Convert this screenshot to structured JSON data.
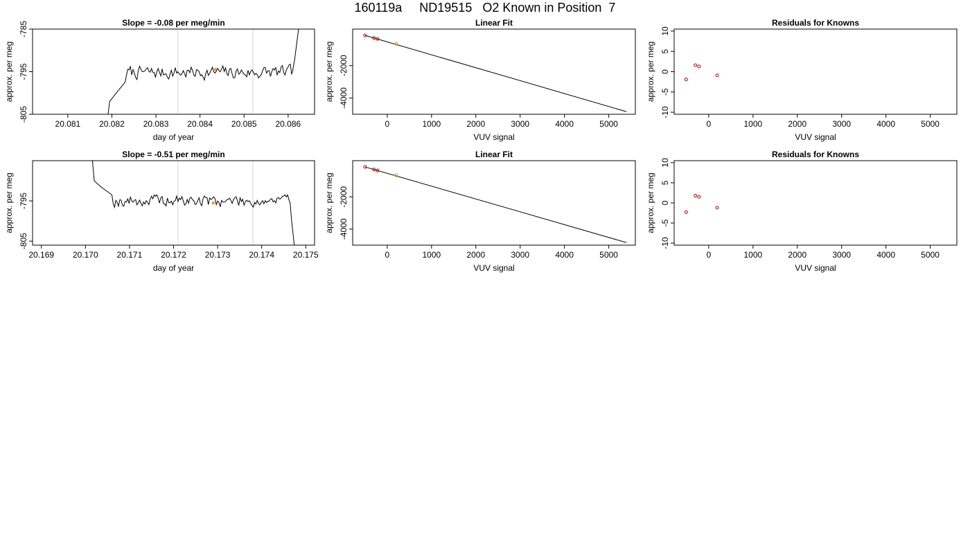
{
  "title": "160119a     ND19515   O2 Known in Position  7",
  "colors": {
    "trace": "#000000",
    "window": "#d3d3d3",
    "point_red": "#cc0000",
    "point_orange": "#ff8c00",
    "axis": "#000000"
  },
  "chart_data": [
    {
      "type": "line",
      "title": "Slope =  -0.08  per meg/min",
      "xlabel": "day of year",
      "ylabel": "approx. per meg",
      "xlim": [
        20.0802,
        20.0866
      ],
      "ylim": [
        -805,
        -785
      ],
      "xticks": [
        "20.081",
        "20.082",
        "20.083",
        "20.084",
        "20.085",
        "20.086"
      ],
      "yticks": [
        "-805",
        "-795",
        "-785"
      ],
      "windows": [
        20.0835,
        20.0852
      ],
      "marker": {
        "x": 20.08435,
        "y": -794.5
      },
      "trace": {
        "start": 20.0819,
        "end": 20.0862,
        "step": 3e-05,
        "base": -795.2,
        "amp": 1.3,
        "seed": 7,
        "lead": [
          [
            20.0819,
            -806
          ],
          [
            20.08195,
            -802
          ],
          [
            20.0821,
            -800
          ],
          [
            20.0823,
            -797.5
          ]
        ],
        "tail": [
          [
            20.0861,
            -795
          ],
          [
            20.08615,
            -792
          ],
          [
            20.08625,
            -784
          ]
        ]
      }
    },
    {
      "type": "scatter",
      "title": "Linear Fit",
      "xlabel": "VUV signal",
      "ylabel": "approx. per meg",
      "xlim": [
        -780,
        5600
      ],
      "ylim": [
        -5000,
        250
      ],
      "xticks": [
        0,
        1000,
        2000,
        3000,
        4000,
        5000
      ],
      "yticks": [
        -4000,
        -2000
      ],
      "line": {
        "x": [
          -500,
          5400
        ],
        "y": [
          -140,
          -4840
        ]
      },
      "points": [
        {
          "x": -500,
          "y": -140
        },
        {
          "x": -300,
          "y": -300
        },
        {
          "x": -220,
          "y": -360
        }
      ],
      "highlight": {
        "x": 200,
        "y": -650
      }
    },
    {
      "type": "scatter",
      "title": "Residuals for Knowns",
      "xlabel": "VUV signal",
      "ylabel": "approx. per meg",
      "xlim": [
        -780,
        5600
      ],
      "ylim": [
        -10.5,
        10.5
      ],
      "xticks": [
        0,
        1000,
        2000,
        3000,
        4000,
        5000
      ],
      "yticks": [
        -10,
        -5,
        0,
        5,
        10
      ],
      "points": [
        {
          "x": -510,
          "y": -1.9
        },
        {
          "x": -300,
          "y": 1.6
        },
        {
          "x": -220,
          "y": 1.3
        },
        {
          "x": 190,
          "y": -0.9
        }
      ]
    },
    {
      "type": "line",
      "title": "Slope =  -0.51  per meg/min",
      "xlabel": "day of year",
      "ylabel": "approx. per meg",
      "xlim": [
        20.1688,
        20.1752
      ],
      "ylim": [
        -806,
        -785
      ],
      "xticks": [
        "20.169",
        "20.170",
        "20.171",
        "20.172",
        "20.173",
        "20.174",
        "20.175"
      ],
      "yticks": [
        "-805",
        "-795"
      ],
      "windows": [
        20.1721,
        20.1738
      ],
      "marker": {
        "x": 20.1729,
        "y": -795.5
      },
      "trace": {
        "start": 20.1702,
        "end": 20.17465,
        "step": 3e-05,
        "base": -795.0,
        "amp": 1.3,
        "seed": 19,
        "lead": [
          [
            20.17015,
            -784
          ],
          [
            20.1702,
            -790
          ],
          [
            20.17035,
            -791.5
          ],
          [
            20.1706,
            -793.5
          ]
        ],
        "tail": [
          [
            20.17465,
            -796
          ],
          [
            20.17468,
            -800
          ],
          [
            20.17475,
            -807
          ]
        ]
      }
    },
    {
      "type": "scatter",
      "title": "Linear Fit",
      "xlabel": "VUV signal",
      "ylabel": "approx. per meg",
      "xlim": [
        -780,
        5600
      ],
      "ylim": [
        -5000,
        250
      ],
      "xticks": [
        0,
        1000,
        2000,
        3000,
        4000,
        5000
      ],
      "yticks": [
        -4000,
        -2000
      ],
      "line": {
        "x": [
          -500,
          5400
        ],
        "y": [
          -140,
          -4840
        ]
      },
      "points": [
        {
          "x": -500,
          "y": -140
        },
        {
          "x": -300,
          "y": -300
        },
        {
          "x": -220,
          "y": -360
        }
      ],
      "highlight": {
        "x": 200,
        "y": -650
      }
    },
    {
      "type": "scatter",
      "title": "Residuals for Knowns",
      "xlabel": "VUV signal",
      "ylabel": "approx. per meg",
      "xlim": [
        -780,
        5600
      ],
      "ylim": [
        -10.5,
        10.5
      ],
      "xticks": [
        0,
        1000,
        2000,
        3000,
        4000,
        5000
      ],
      "yticks": [
        -10,
        -5,
        0,
        5,
        10
      ],
      "points": [
        {
          "x": -510,
          "y": -2.3
        },
        {
          "x": -300,
          "y": 1.8
        },
        {
          "x": -220,
          "y": 1.5
        },
        {
          "x": 190,
          "y": -1.2
        }
      ]
    }
  ]
}
